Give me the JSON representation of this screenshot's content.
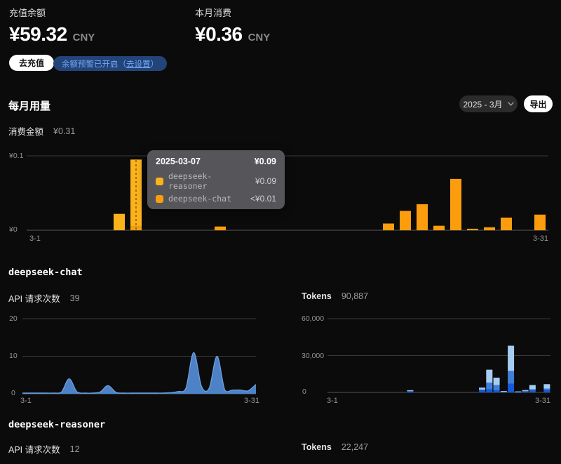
{
  "header": {
    "balance_label": "充值余额",
    "balance_value": "¥59.32",
    "balance_currency": "CNY",
    "month_label": "本月消费",
    "month_value": "¥0.36",
    "month_currency": "CNY",
    "recharge_button": "去充值",
    "alert_badge_prefix": "余额预警已开启（",
    "alert_badge_link": "去设置",
    "alert_badge_suffix": "）"
  },
  "usage": {
    "title": "每月用量",
    "month_select": "2025 - 3月",
    "export_button": "导出",
    "spend_label": "消费金额",
    "spend_value": "¥0.31"
  },
  "tooltip": {
    "date": "2025-03-07",
    "total": "¥0.09",
    "rows": [
      {
        "name": "deepseek-reasoner",
        "value": "¥0.09",
        "color": "#fcb31a"
      },
      {
        "name": "deepseek-chat",
        "value": "<¥0.01",
        "color": "#fc9d0d"
      }
    ]
  },
  "models": {
    "chat": {
      "title": "deepseek-chat",
      "requests_label": "API 请求次数",
      "requests_value": "39",
      "tokens_label": "Tokens",
      "tokens_value": "90,887"
    },
    "reasoner": {
      "title": "deepseek-reasoner",
      "requests_label": "API 请求次数",
      "requests_value": "12",
      "tokens_label": "Tokens",
      "tokens_value": "22,247"
    }
  },
  "chart_data": [
    {
      "id": "monthly-spend",
      "type": "bar",
      "stacked": true,
      "title": "每月用量 消费金额 ¥0.31",
      "x_axis": {
        "start_label": "3-1",
        "end_label": "3-31",
        "days": 31
      },
      "y_ticks": [
        {
          "label": "¥0.1",
          "value": 0.1
        },
        {
          "label": "¥0",
          "value": 0
        }
      ],
      "ylim": [
        0,
        0.1
      ],
      "hover_day": 7,
      "series": [
        {
          "name": "deepseek-chat",
          "color": "#fc9d0d",
          "points": {
            "7": 0.005,
            "12": 0.005,
            "22": 0.009,
            "23": 0.026,
            "24": 0.035,
            "25": 0.006,
            "26": 0.069,
            "27": 0.002,
            "28": 0.004,
            "29": 0.017,
            "31": 0.021
          }
        },
        {
          "name": "deepseek-reasoner",
          "color": "#fcb31a",
          "points": {
            "6": 0.022,
            "7": 0.09
          }
        }
      ]
    },
    {
      "id": "chat-requests",
      "type": "area",
      "title": "deepseek-chat API 请求次数",
      "color": "#4d82c6",
      "line_color": "#6ba0e2",
      "x_axis": {
        "start_label": "3-1",
        "end_label": "3-31",
        "days": 31
      },
      "y_ticks": [
        {
          "label": "20",
          "value": 20
        },
        {
          "label": "10",
          "value": 10
        },
        {
          "label": "0",
          "value": 0
        }
      ],
      "ylim": [
        0,
        20
      ],
      "values": [
        0.2,
        0.2,
        0.2,
        0.2,
        0.2,
        0.4,
        4,
        0.5,
        0.2,
        0.2,
        0.5,
        2.2,
        0.4,
        0.2,
        0.2,
        0.2,
        0.2,
        0.2,
        0.2,
        0.3,
        0.6,
        1.5,
        11,
        2,
        1.5,
        10,
        1,
        1,
        1,
        0.8,
        2.5
      ]
    },
    {
      "id": "chat-tokens",
      "type": "stacked-bar",
      "title": "deepseek-chat Tokens",
      "segment_colors": [
        "#1459d8",
        "#3f7fd8",
        "#a5cdf2"
      ],
      "x_axis": {
        "start_label": "3-1",
        "end_label": "3-31",
        "days": 31
      },
      "y_ticks": [
        {
          "label": "60,000",
          "value": 60000
        },
        {
          "label": "30,000",
          "value": 30000
        },
        {
          "label": "0",
          "value": 0
        }
      ],
      "ylim": [
        0,
        60000
      ],
      "bars": {
        "12": [
          700,
          500,
          600
        ],
        "22": [
          2300,
          0,
          1600
        ],
        "23": [
          2600,
          5400,
          10500
        ],
        "24": [
          1600,
          4400,
          6000
        ],
        "25": [
          500,
          300,
          300
        ],
        "26": [
          7000,
          10500,
          20500
        ],
        "27": [
          400,
          200,
          200
        ],
        "28": [
          700,
          500,
          700
        ],
        "29": [
          1600,
          1000,
          3400
        ],
        "31": [
          1900,
          1200,
          3600
        ]
      }
    }
  ]
}
